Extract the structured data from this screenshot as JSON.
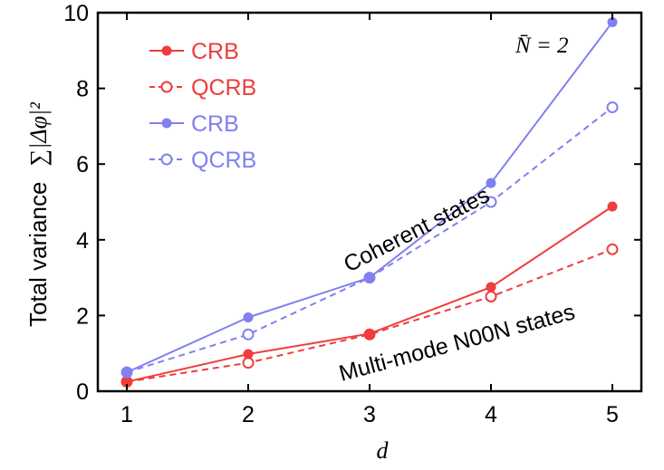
{
  "chart_data": {
    "type": "line",
    "x": [
      1,
      2,
      3,
      4,
      5
    ],
    "xlabel": "d",
    "ylabel": "Total variance  ∑|Δφ|²",
    "ylabel_text": "Total variance",
    "ylabel_math": "∑|Δφ|²",
    "xlim": [
      1,
      5
    ],
    "ylim": [
      0,
      10
    ],
    "xticks": [
      1,
      2,
      3,
      4,
      5
    ],
    "yticks": [
      0,
      2,
      4,
      6,
      8,
      10
    ],
    "grid": false,
    "legend_position": "top-left",
    "annotation_n": "N̄ = 2",
    "annotation_coherent": "Coherent states",
    "annotation_noon": "Multi-mode N00N states",
    "series": [
      {
        "name": "CRB",
        "group": "noon",
        "style": "solid",
        "marker": "filled",
        "color": "#f03c3c",
        "values": [
          0.25,
          0.98,
          1.52,
          2.75,
          4.88
        ]
      },
      {
        "name": "QCRB",
        "group": "noon",
        "style": "dashed",
        "marker": "open",
        "color": "#f03c3c",
        "values": [
          0.25,
          0.75,
          1.5,
          2.5,
          3.75
        ]
      },
      {
        "name": "CRB",
        "group": "coherent",
        "style": "solid",
        "marker": "filled",
        "color": "#8080f0",
        "values": [
          0.5,
          1.95,
          3.0,
          5.5,
          9.75
        ]
      },
      {
        "name": "QCRB",
        "group": "coherent",
        "style": "dashed",
        "marker": "open",
        "color": "#8080f0",
        "values": [
          0.5,
          1.5,
          3.0,
          5.0,
          7.5
        ]
      }
    ]
  }
}
